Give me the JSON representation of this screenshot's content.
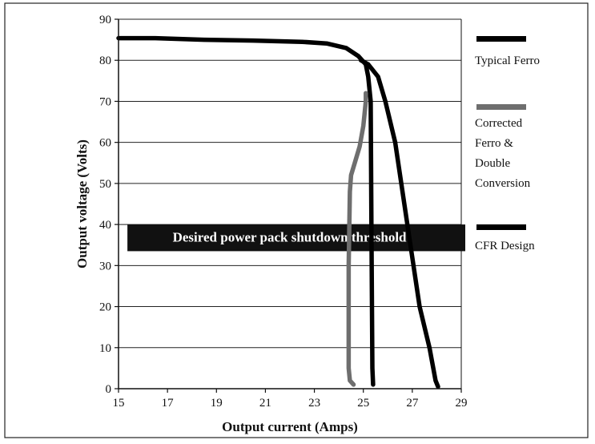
{
  "chart_data": {
    "type": "line",
    "xlabel": "Output current (Amps)",
    "ylabel": "Output voltage (Volts)",
    "xlim": [
      15,
      29
    ],
    "ylim": [
      0,
      90
    ],
    "x_ticks": [
      15,
      17,
      19,
      21,
      23,
      25,
      27,
      29
    ],
    "y_ticks": [
      0,
      10,
      20,
      30,
      40,
      50,
      60,
      70,
      80,
      90
    ],
    "grid": "horizontal",
    "legend_placement": "right",
    "threshold_band": {
      "label": "Desired power pack shutdown threshold",
      "y_range": [
        33.5,
        40
      ],
      "x_range": [
        15.2,
        29
      ],
      "color": "#111111"
    },
    "series": [
      {
        "name": "Typical Ferro",
        "color": "#000000",
        "x": [
          15,
          16.5,
          18.5,
          20.5,
          22.5,
          23.5,
          24.3,
          24.8,
          25.1,
          25.2,
          25.3,
          25.33,
          25.37,
          25.4
        ],
        "y": [
          85.4,
          85.4,
          85.0,
          84.8,
          84.5,
          84.1,
          83.0,
          81.0,
          79.0,
          76.0,
          70.0,
          40.0,
          5.0,
          1.0
        ]
      },
      {
        "name": "Corrected Ferro & Double Conversion",
        "color": "#6e6e6e",
        "x": [
          25.1,
          25.1,
          25.0,
          24.85,
          24.65,
          24.5,
          24.45,
          24.4,
          24.4,
          24.45,
          24.6
        ],
        "y": [
          72.0,
          70.0,
          64.0,
          59.0,
          55.0,
          52.0,
          48.0,
          30.0,
          5.0,
          2.0,
          1.0
        ],
        "legend_label_lines": [
          "Corrected",
          "Ferro &",
          "Double",
          "Conversion"
        ]
      },
      {
        "name": "CFR Design",
        "color": "#000000",
        "x": [
          24.9,
          25.2,
          25.6,
          25.9,
          26.3,
          26.8,
          27.3,
          27.7,
          27.95,
          28.05
        ],
        "y": [
          80.0,
          79.0,
          76.0,
          70.0,
          60.0,
          40.0,
          20.0,
          10.0,
          2.0,
          0.5
        ]
      }
    ]
  }
}
